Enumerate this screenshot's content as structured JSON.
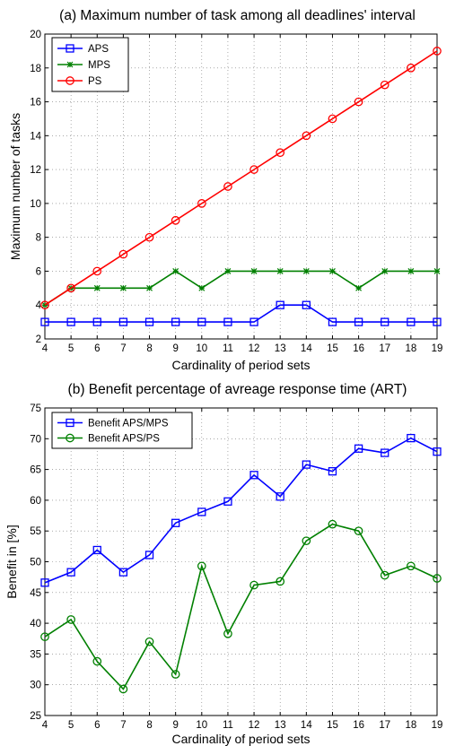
{
  "chart_data": [
    {
      "type": "line",
      "title": "(a) Maximum number of task among all deadlines' interval",
      "xlabel": "Cardinality of period sets",
      "ylabel": "Maximum number of tasks",
      "x": [
        4,
        5,
        6,
        7,
        8,
        9,
        10,
        11,
        12,
        13,
        14,
        15,
        16,
        17,
        18,
        19
      ],
      "xlim": [
        4,
        19
      ],
      "ylim": [
        2,
        20
      ],
      "yticks": [
        2,
        4,
        6,
        8,
        10,
        12,
        14,
        16,
        18,
        20
      ],
      "grid": true,
      "legend_position": "top-left",
      "series": [
        {
          "name": "APS",
          "color": "#0000ff",
          "marker": "square",
          "values": [
            3,
            3,
            3,
            3,
            3,
            3,
            3,
            3,
            3,
            4,
            4,
            3,
            3,
            3,
            3,
            3
          ]
        },
        {
          "name": "MPS",
          "color": "#008000",
          "marker": "star",
          "values": [
            4,
            5,
            5,
            5,
            5,
            6,
            5,
            6,
            6,
            6,
            6,
            6,
            5,
            6,
            6,
            6
          ]
        },
        {
          "name": "PS",
          "color": "#ff0000",
          "marker": "circle",
          "values": [
            4,
            5,
            6,
            7,
            8,
            9,
            10,
            11,
            12,
            13,
            14,
            15,
            16,
            17,
            18,
            19
          ]
        }
      ]
    },
    {
      "type": "line",
      "title": "(b) Benefit percentage of avreage response time (ART)",
      "xlabel": "Cardinality of period sets",
      "ylabel": "Benefit in [%]",
      "x": [
        4,
        5,
        6,
        7,
        8,
        9,
        10,
        11,
        12,
        13,
        14,
        15,
        16,
        17,
        18,
        19
      ],
      "xlim": [
        4,
        19
      ],
      "ylim": [
        25,
        75
      ],
      "yticks": [
        25,
        30,
        35,
        40,
        45,
        50,
        55,
        60,
        65,
        70,
        75
      ],
      "grid": true,
      "legend_position": "top-left",
      "series": [
        {
          "name": "Benefit APS/MPS",
          "color": "#0000ff",
          "marker": "square",
          "values": [
            46.6,
            48.3,
            51.9,
            48.3,
            51.1,
            56.3,
            58.1,
            59.8,
            64.1,
            60.6,
            65.8,
            64.7,
            68.4,
            67.7,
            70.1,
            67.9
          ]
        },
        {
          "name": "Benefit APS/PS",
          "color": "#008000",
          "marker": "circle",
          "values": [
            37.8,
            40.6,
            33.8,
            29.3,
            37.0,
            31.7,
            49.3,
            38.3,
            46.2,
            46.8,
            53.4,
            56.1,
            55.0,
            47.8,
            49.3,
            47.3
          ]
        }
      ]
    }
  ]
}
